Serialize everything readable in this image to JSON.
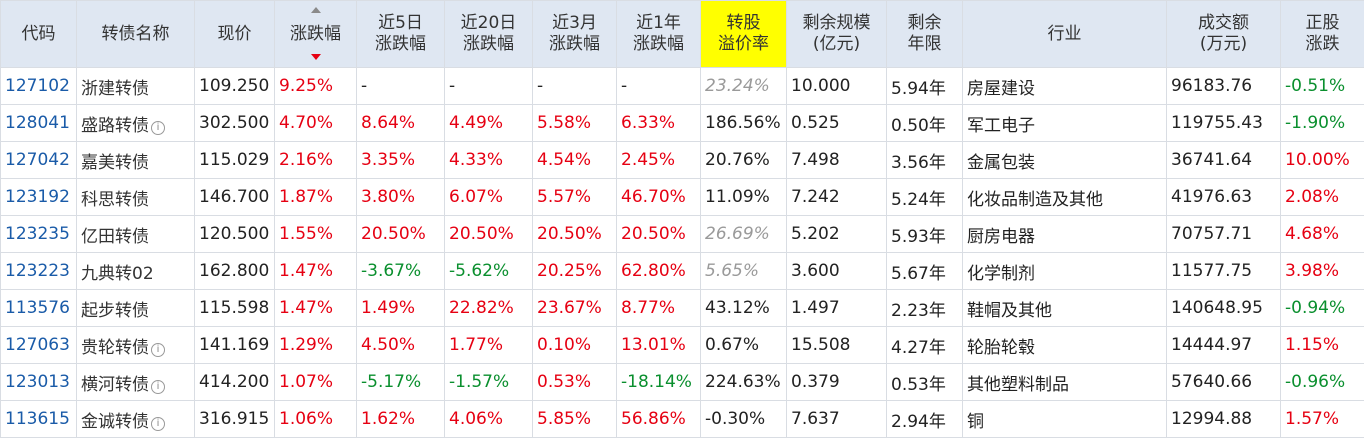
{
  "headers": [
    {
      "key": "code",
      "label1": "代码",
      "label2": ""
    },
    {
      "key": "name",
      "label1": "转债名称",
      "label2": ""
    },
    {
      "key": "price",
      "label1": "现价",
      "label2": ""
    },
    {
      "key": "chg",
      "label1": "涨跌幅",
      "label2": ""
    },
    {
      "key": "chg5",
      "label1": "近5日",
      "label2": "涨跌幅"
    },
    {
      "key": "chg20",
      "label1": "近20日",
      "label2": "涨跌幅"
    },
    {
      "key": "chg3m",
      "label1": "近3月",
      "label2": "涨跌幅"
    },
    {
      "key": "chg1y",
      "label1": "近1年",
      "label2": "涨跌幅"
    },
    {
      "key": "premium",
      "label1": "转股",
      "label2": "溢价率"
    },
    {
      "key": "scale",
      "label1": "剩余规模",
      "label2": "(亿元)"
    },
    {
      "key": "years",
      "label1": "剩余",
      "label2": "年限"
    },
    {
      "key": "industry",
      "label1": "行业",
      "label2": ""
    },
    {
      "key": "turnover",
      "label1": "成交额",
      "label2": "(万元)"
    },
    {
      "key": "stockchg",
      "label1": "正股",
      "label2": "涨跌"
    }
  ],
  "rows": [
    {
      "code": "127102",
      "name": "浙建转债",
      "info": false,
      "price": "109.250",
      "chg": "9.25%",
      "chg5": "-",
      "chg20": "-",
      "chg3m": "-",
      "chg1y": "-",
      "premium": "23.24%",
      "premium_style": "gray",
      "scale": "10.000",
      "years": "5.94年",
      "industry": "房屋建设",
      "turnover": "96183.76",
      "stockchg": "-0.51%"
    },
    {
      "code": "128041",
      "name": "盛路转债",
      "info": true,
      "price": "302.500",
      "chg": "4.70%",
      "chg5": "8.64%",
      "chg20": "4.49%",
      "chg3m": "5.58%",
      "chg1y": "6.33%",
      "premium": "186.56%",
      "premium_style": "normal",
      "scale": "0.525",
      "years": "0.50年",
      "industry": "军工电子",
      "turnover": "119755.43",
      "stockchg": "-1.90%"
    },
    {
      "code": "127042",
      "name": "嘉美转债",
      "info": false,
      "price": "115.029",
      "chg": "2.16%",
      "chg5": "3.35%",
      "chg20": "4.33%",
      "chg3m": "4.54%",
      "chg1y": "2.45%",
      "premium": "20.76%",
      "premium_style": "normal",
      "scale": "7.498",
      "years": "3.56年",
      "industry": "金属包装",
      "turnover": "36741.64",
      "stockchg": "10.00%"
    },
    {
      "code": "123192",
      "name": "科思转债",
      "info": false,
      "price": "146.700",
      "chg": "1.87%",
      "chg5": "3.80%",
      "chg20": "6.07%",
      "chg3m": "5.57%",
      "chg1y": "46.70%",
      "premium": "11.09%",
      "premium_style": "normal",
      "scale": "7.242",
      "years": "5.24年",
      "industry": "化妆品制造及其他",
      "turnover": "41976.63",
      "stockchg": "2.08%"
    },
    {
      "code": "123235",
      "name": "亿田转债",
      "info": false,
      "price": "120.500",
      "chg": "1.55%",
      "chg5": "20.50%",
      "chg20": "20.50%",
      "chg3m": "20.50%",
      "chg1y": "20.50%",
      "premium": "26.69%",
      "premium_style": "gray",
      "scale": "5.202",
      "years": "5.93年",
      "industry": "厨房电器",
      "turnover": "70757.71",
      "stockchg": "4.68%"
    },
    {
      "code": "123223",
      "name": "九典转02",
      "info": false,
      "price": "162.800",
      "chg": "1.47%",
      "chg5": "-3.67%",
      "chg20": "-5.62%",
      "chg3m": "20.25%",
      "chg1y": "62.80%",
      "premium": "5.65%",
      "premium_style": "gray",
      "scale": "3.600",
      "years": "5.67年",
      "industry": "化学制剂",
      "turnover": "11577.75",
      "stockchg": "3.98%"
    },
    {
      "code": "113576",
      "name": "起步转债",
      "info": false,
      "price": "115.598",
      "chg": "1.47%",
      "chg5": "1.49%",
      "chg20": "22.82%",
      "chg3m": "23.67%",
      "chg1y": "8.77%",
      "premium": "43.12%",
      "premium_style": "normal",
      "scale": "1.497",
      "years": "2.23年",
      "industry": "鞋帽及其他",
      "turnover": "140648.95",
      "stockchg": "-0.94%"
    },
    {
      "code": "127063",
      "name": "贵轮转债",
      "info": true,
      "price": "141.169",
      "chg": "1.29%",
      "chg5": "4.50%",
      "chg20": "1.77%",
      "chg3m": "0.10%",
      "chg1y": "13.01%",
      "premium": "0.67%",
      "premium_style": "normal",
      "scale": "15.508",
      "years": "4.27年",
      "industry": "轮胎轮毂",
      "turnover": "14444.97",
      "stockchg": "1.15%"
    },
    {
      "code": "123013",
      "name": "横河转债",
      "info": true,
      "price": "414.200",
      "chg": "1.07%",
      "chg5": "-5.17%",
      "chg20": "-1.57%",
      "chg3m": "0.53%",
      "chg1y": "-18.14%",
      "premium": "224.63%",
      "premium_style": "normal",
      "scale": "0.379",
      "years": "0.53年",
      "industry": "其他塑料制品",
      "turnover": "57640.66",
      "stockchg": "-0.96%"
    },
    {
      "code": "113615",
      "name": "金诚转债",
      "info": true,
      "price": "316.915",
      "chg": "1.06%",
      "chg5": "1.62%",
      "chg20": "4.06%",
      "chg3m": "5.85%",
      "chg1y": "56.86%",
      "premium": "-0.30%",
      "premium_style": "normal",
      "scale": "7.637",
      "years": "2.94年",
      "industry": "铜",
      "turnover": "12994.88",
      "stockchg": "1.57%"
    }
  ],
  "colors": {
    "up": "#e60012",
    "down": "#0a8f2e",
    "header_bg": "#dfe7f2",
    "highlight": "#ffff00",
    "code": "#1a5ba8"
  }
}
